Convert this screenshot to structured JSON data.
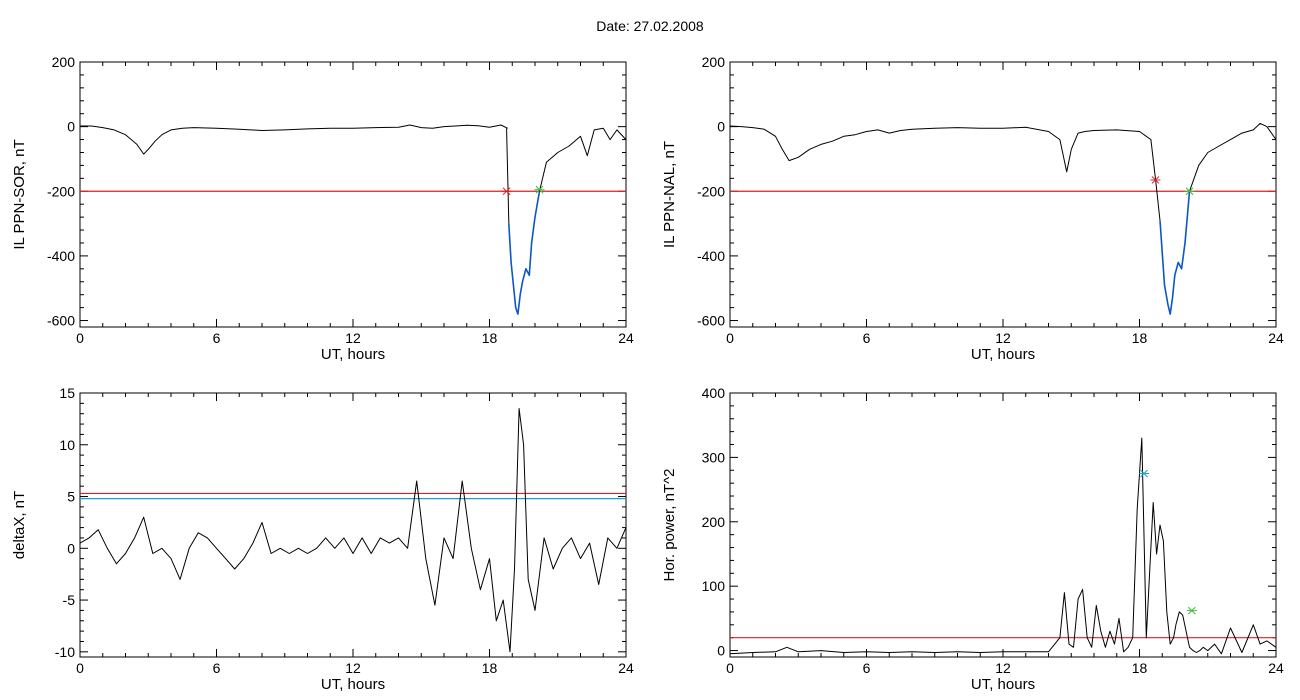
{
  "page": {
    "title": "Date:  27.02.2008"
  },
  "chart_data": [
    {
      "type": "line",
      "xlabel": "UT, hours",
      "ylabel": "IL PPN-SOR, nT",
      "xlim": [
        0,
        24
      ],
      "ylim": [
        -620,
        200
      ],
      "xticks": [
        0,
        6,
        12,
        18,
        24
      ],
      "yticks": [
        200,
        0,
        -200,
        -400,
        -600
      ],
      "grid": false,
      "series": [
        {
          "color": "#000000",
          "x": [
            0,
            0.5,
            1,
            1.5,
            2,
            2.5,
            2.8,
            3,
            3.3,
            3.6,
            4,
            4.5,
            5,
            6,
            7,
            8,
            9,
            10,
            11,
            12,
            13,
            14,
            14.5,
            15,
            15.5,
            16,
            16.5,
            17,
            17.5,
            18,
            18.5,
            18.8
          ],
          "y": [
            2,
            2,
            -3,
            -10,
            -25,
            -55,
            -85,
            -70,
            -45,
            -25,
            -10,
            -5,
            -3,
            -5,
            -8,
            -12,
            -10,
            -7,
            -5,
            -5,
            -3,
            -2,
            5,
            -3,
            -5,
            0,
            2,
            4,
            3,
            -2,
            5,
            -5
          ]
        },
        {
          "color": "#0b57c4",
          "x": [
            18.85,
            18.95,
            19.05,
            19.15,
            19.25,
            19.35,
            19.45,
            19.6,
            19.75,
            19.85,
            20,
            20.2
          ],
          "y": [
            -300,
            -420,
            -490,
            -560,
            -580,
            -520,
            -480,
            -440,
            -460,
            -360,
            -280,
            -200
          ]
        },
        {
          "color": "#000000",
          "x": [
            20.2,
            20.5,
            21,
            21.5,
            22,
            22.3,
            22.6,
            23,
            23.3,
            23.6,
            24
          ],
          "y": [
            -200,
            -110,
            -80,
            -60,
            -30,
            -90,
            -10,
            -5,
            -40,
            -10,
            -40
          ]
        }
      ],
      "steep_drop": {
        "x": [
          18.75,
          18.85
        ],
        "y": [
          -5,
          -300
        ]
      },
      "hlines": [
        {
          "y": -200,
          "color": "#e02020"
        }
      ],
      "markers": [
        {
          "x": 18.75,
          "y": -200,
          "color": "#e02020"
        },
        {
          "x": 20.2,
          "y": -195,
          "color": "#3bbf3b"
        }
      ]
    },
    {
      "type": "line",
      "xlabel": "UT, hours",
      "ylabel": "IL PPN-NAL, nT",
      "xlim": [
        0,
        24
      ],
      "ylim": [
        -620,
        200
      ],
      "xticks": [
        0,
        6,
        12,
        18,
        24
      ],
      "yticks": [
        200,
        0,
        -200,
        -400,
        -600
      ],
      "grid": false,
      "series": [
        {
          "color": "#000000",
          "x": [
            0,
            0.5,
            1,
            1.5,
            2,
            2.3,
            2.6,
            3,
            3.5,
            4,
            4.5,
            5,
            5.5,
            6,
            6.5,
            7,
            7.5,
            8,
            9,
            10,
            11,
            12,
            13,
            14,
            14.5,
            14.8,
            15,
            15.3,
            15.6,
            16,
            17,
            18,
            18.5,
            18.7
          ],
          "y": [
            2,
            0,
            -3,
            -8,
            -30,
            -70,
            -105,
            -95,
            -70,
            -55,
            -45,
            -30,
            -25,
            -15,
            -10,
            -20,
            -12,
            -8,
            -5,
            -3,
            -5,
            -5,
            -2,
            -15,
            -40,
            -140,
            -70,
            -20,
            -15,
            -12,
            -10,
            -15,
            -40,
            -160
          ]
        },
        {
          "color": "#0b57c4",
          "x": [
            18.9,
            19.1,
            19.25,
            19.35,
            19.45,
            19.55,
            19.7,
            19.85,
            20,
            20.1,
            20.2
          ],
          "y": [
            -290,
            -490,
            -550,
            -580,
            -530,
            -460,
            -420,
            -440,
            -360,
            -280,
            -200
          ]
        },
        {
          "color": "#000000",
          "x": [
            20.2,
            20.6,
            21,
            21.5,
            22,
            22.5,
            23,
            23.3,
            23.6,
            24
          ],
          "y": [
            -200,
            -120,
            -80,
            -60,
            -40,
            -20,
            -10,
            10,
            0,
            -40
          ]
        }
      ],
      "steep_drop": {
        "x": [
          18.7,
          18.9
        ],
        "y": [
          -160,
          -290
        ]
      },
      "hlines": [
        {
          "y": -200,
          "color": "#e02020"
        }
      ],
      "markers": [
        {
          "x": 18.7,
          "y": -165,
          "color": "#e02020"
        },
        {
          "x": 20.2,
          "y": -200,
          "color": "#3bbf3b"
        }
      ]
    },
    {
      "type": "line",
      "xlabel": "UT, hours",
      "ylabel": "deltaX, nT",
      "xlim": [
        0,
        24
      ],
      "ylim": [
        -10.5,
        15
      ],
      "xticks": [
        0,
        6,
        12,
        18,
        24
      ],
      "yticks": [
        15,
        10,
        5,
        0,
        -5,
        -10
      ],
      "grid": false,
      "series": [
        {
          "color": "#000000",
          "x": [
            0,
            0.4,
            0.8,
            1.2,
            1.6,
            2,
            2.4,
            2.8,
            3.2,
            3.6,
            4,
            4.4,
            4.8,
            5.2,
            5.6,
            6,
            6.4,
            6.8,
            7.2,
            7.6,
            8,
            8.4,
            8.8,
            9.2,
            9.6,
            10,
            10.4,
            10.8,
            11.2,
            11.6,
            12,
            12.4,
            12.8,
            13.2,
            13.6,
            14,
            14.4,
            14.8,
            15.2,
            15.6,
            16,
            16.4,
            16.8,
            17.2,
            17.6,
            18,
            18.3,
            18.6,
            18.9,
            19.1,
            19.3,
            19.5,
            19.7,
            20,
            20.4,
            20.8,
            21.2,
            21.6,
            22,
            22.4,
            22.8,
            23.2,
            23.6,
            24
          ],
          "y": [
            0.5,
            1,
            1.8,
            0,
            -1.5,
            -0.5,
            1,
            3,
            -0.5,
            0,
            -1,
            -3,
            0,
            1.5,
            1,
            0,
            -1,
            -2,
            -1,
            0.5,
            2.5,
            -0.5,
            0,
            -0.5,
            0,
            -0.5,
            0,
            1,
            0,
            1,
            -0.5,
            1,
            -0.5,
            1,
            0.5,
            1,
            0,
            6.5,
            -1,
            -5.5,
            1,
            -1,
            6.5,
            0,
            -4,
            -1,
            -7,
            -5,
            -10,
            -2,
            13.5,
            10,
            -3,
            -6,
            1,
            -2,
            0,
            1,
            -1,
            0.5,
            -3.5,
            1,
            0,
            2
          ]
        }
      ],
      "hlines": [
        {
          "y": 5.3,
          "color": "#e02020"
        },
        {
          "y": 4.8,
          "color": "#1a9fd0"
        }
      ],
      "markers": []
    },
    {
      "type": "line",
      "xlabel": "UT, hours",
      "ylabel": "Hor. power, nT^2",
      "xlim": [
        0,
        24
      ],
      "ylim": [
        -10,
        400
      ],
      "xticks": [
        0,
        6,
        12,
        18,
        24
      ],
      "yticks": [
        400,
        300,
        200,
        100,
        0
      ],
      "grid": false,
      "series": [
        {
          "color": "#000000",
          "x": [
            0,
            1,
            2,
            2.5,
            3,
            4,
            5,
            6,
            7,
            8,
            9,
            10,
            11,
            12,
            13,
            14,
            14.5,
            14.7,
            14.9,
            15.1,
            15.3,
            15.5,
            15.7,
            15.9,
            16.1,
            16.3,
            16.5,
            16.7,
            16.9,
            17.1,
            17.3,
            17.5,
            17.7,
            17.9,
            18.1,
            18.3,
            18.5,
            18.6,
            18.75,
            18.9,
            19.05,
            19.2,
            19.35,
            19.5,
            19.6,
            19.75,
            19.9,
            20.05,
            20.2,
            20.35,
            20.5,
            20.65,
            20.8,
            21,
            21.3,
            21.6,
            22,
            22.5,
            23,
            23.3,
            23.6,
            24
          ],
          "y": [
            -5,
            -3,
            -2,
            5,
            -2,
            0,
            -3,
            -2,
            -3,
            -2,
            -3,
            -2,
            -3,
            -2,
            -2,
            -2,
            20,
            90,
            10,
            5,
            80,
            95,
            20,
            5,
            70,
            30,
            5,
            30,
            10,
            50,
            -2,
            5,
            20,
            220,
            330,
            20,
            160,
            230,
            150,
            195,
            170,
            60,
            10,
            20,
            40,
            60,
            55,
            30,
            5,
            0,
            -3,
            0,
            5,
            0,
            10,
            -5,
            35,
            -3,
            40,
            10,
            15,
            5
          ]
        }
      ],
      "hlines": [
        {
          "y": 20,
          "color": "#e02020"
        }
      ],
      "markers": [
        {
          "x": 18.2,
          "y": 275,
          "color": "#1a9fd0"
        },
        {
          "x": 20.3,
          "y": 62,
          "color": "#3bbf3b"
        }
      ]
    }
  ]
}
